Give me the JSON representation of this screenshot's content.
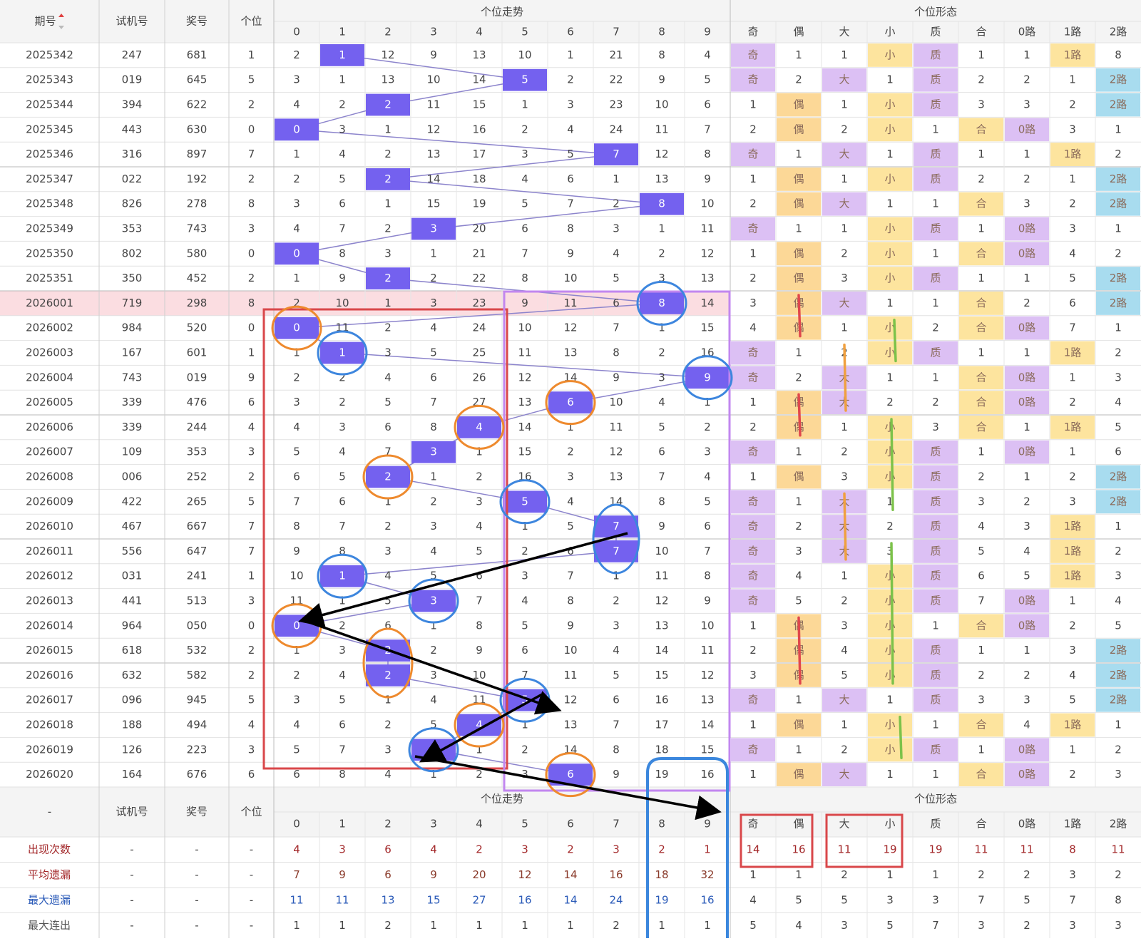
{
  "header": {
    "columns": [
      "期号",
      "试机号",
      "奖号",
      "个位"
    ],
    "group_trend": "个位走势",
    "group_form": "个位形态",
    "digits": [
      "0",
      "1",
      "2",
      "3",
      "4",
      "5",
      "6",
      "7",
      "8",
      "9"
    ],
    "forms": [
      "奇",
      "偶",
      "大",
      "小",
      "质",
      "合",
      "0路",
      "1路",
      "2路"
    ]
  },
  "rows": [
    {
      "issue": "2025342",
      "test": "247",
      "prize": "681",
      "unit": 1,
      "trend": [
        2,
        1,
        12,
        9,
        13,
        10,
        1,
        21,
        8,
        4
      ],
      "form": [
        "奇",
        1,
        1,
        "小",
        "质",
        1,
        1,
        "1路",
        8
      ]
    },
    {
      "issue": "2025343",
      "test": "019",
      "prize": "645",
      "unit": 5,
      "trend": [
        3,
        1,
        13,
        10,
        14,
        5,
        2,
        22,
        9,
        5
      ],
      "form": [
        "奇",
        2,
        "大",
        1,
        "质",
        2,
        2,
        1,
        "2路"
      ]
    },
    {
      "issue": "2025344",
      "test": "394",
      "prize": "622",
      "unit": 2,
      "trend": [
        4,
        2,
        2,
        11,
        15,
        1,
        3,
        23,
        10,
        6
      ],
      "form": [
        1,
        "偶",
        1,
        "小",
        "质",
        3,
        3,
        2,
        "2路"
      ]
    },
    {
      "issue": "2025345",
      "test": "443",
      "prize": "630",
      "unit": 0,
      "trend": [
        0,
        3,
        1,
        12,
        16,
        2,
        4,
        24,
        11,
        7
      ],
      "form": [
        2,
        "偶",
        2,
        "小",
        1,
        "合",
        "0路",
        3,
        1
      ]
    },
    {
      "issue": "2025346",
      "test": "316",
      "prize": "897",
      "unit": 7,
      "trend": [
        1,
        4,
        2,
        13,
        17,
        3,
        5,
        7,
        12,
        8
      ],
      "form": [
        "奇",
        1,
        "大",
        1,
        "质",
        1,
        1,
        "1路",
        2
      ]
    },
    {
      "issue": "2025347",
      "test": "022",
      "prize": "192",
      "unit": 2,
      "trend": [
        2,
        5,
        2,
        14,
        18,
        4,
        6,
        1,
        13,
        9
      ],
      "form": [
        1,
        "偶",
        1,
        "小",
        "质",
        2,
        2,
        1,
        "2路"
      ]
    },
    {
      "issue": "2025348",
      "test": "826",
      "prize": "278",
      "unit": 8,
      "trend": [
        3,
        6,
        1,
        15,
        19,
        5,
        7,
        2,
        8,
        10
      ],
      "form": [
        2,
        "偶",
        "大",
        1,
        1,
        "合",
        3,
        2,
        "2路"
      ]
    },
    {
      "issue": "2025349",
      "test": "353",
      "prize": "743",
      "unit": 3,
      "trend": [
        4,
        7,
        2,
        3,
        20,
        6,
        8,
        3,
        1,
        11
      ],
      "form": [
        "奇",
        1,
        1,
        "小",
        "质",
        1,
        "0路",
        3,
        1
      ]
    },
    {
      "issue": "2025350",
      "test": "802",
      "prize": "580",
      "unit": 0,
      "trend": [
        0,
        8,
        3,
        1,
        21,
        7,
        9,
        4,
        2,
        12
      ],
      "form": [
        1,
        "偶",
        2,
        "小",
        1,
        "合",
        "0路",
        4,
        2
      ]
    },
    {
      "issue": "2025351",
      "test": "350",
      "prize": "452",
      "unit": 2,
      "trend": [
        1,
        9,
        2,
        2,
        22,
        8,
        10,
        5,
        3,
        13
      ],
      "form": [
        2,
        "偶",
        3,
        "小",
        "质",
        1,
        1,
        5,
        "2路"
      ]
    },
    {
      "issue": "2026001",
      "test": "719",
      "prize": "298",
      "unit": 8,
      "trend": [
        2,
        10,
        1,
        3,
        23,
        9,
        11,
        6,
        8,
        14
      ],
      "form": [
        3,
        "偶",
        "大",
        1,
        1,
        "合",
        2,
        6,
        "2路"
      ]
    },
    {
      "issue": "2026002",
      "test": "984",
      "prize": "520",
      "unit": 0,
      "trend": [
        0,
        11,
        2,
        4,
        24,
        10,
        12,
        7,
        1,
        15
      ],
      "form": [
        4,
        "偶",
        1,
        "小",
        2,
        "合",
        "0路",
        7,
        1
      ]
    },
    {
      "issue": "2026003",
      "test": "167",
      "prize": "601",
      "unit": 1,
      "trend": [
        1,
        1,
        3,
        5,
        25,
        11,
        13,
        8,
        2,
        16
      ],
      "form": [
        "奇",
        1,
        2,
        "小",
        "质",
        1,
        1,
        "1路",
        2
      ]
    },
    {
      "issue": "2026004",
      "test": "743",
      "prize": "019",
      "unit": 9,
      "trend": [
        2,
        2,
        4,
        6,
        26,
        12,
        14,
        9,
        3,
        9
      ],
      "form": [
        "奇",
        2,
        "大",
        1,
        1,
        "合",
        "0路",
        1,
        3
      ]
    },
    {
      "issue": "2026005",
      "test": "339",
      "prize": "476",
      "unit": 6,
      "trend": [
        3,
        2,
        5,
        7,
        27,
        13,
        6,
        10,
        4,
        1
      ],
      "form": [
        1,
        "偶",
        "大",
        2,
        2,
        "合",
        "0路",
        2,
        4
      ]
    },
    {
      "issue": "2026006",
      "test": "339",
      "prize": "244",
      "unit": 4,
      "trend": [
        4,
        3,
        6,
        8,
        4,
        14,
        1,
        11,
        5,
        2
      ],
      "form": [
        2,
        "偶",
        1,
        "小",
        3,
        "合",
        1,
        "1路",
        5
      ]
    },
    {
      "issue": "2026007",
      "test": "109",
      "prize": "353",
      "unit": 3,
      "trend": [
        5,
        4,
        7,
        3,
        1,
        15,
        2,
        12,
        6,
        3
      ],
      "form": [
        "奇",
        1,
        2,
        "小",
        "质",
        1,
        "0路",
        1,
        6
      ]
    },
    {
      "issue": "2026008",
      "test": "006",
      "prize": "252",
      "unit": 2,
      "trend": [
        6,
        5,
        2,
        1,
        2,
        16,
        3,
        13,
        7,
        4
      ],
      "form": [
        1,
        "偶",
        3,
        "小",
        "质",
        2,
        1,
        2,
        "2路"
      ]
    },
    {
      "issue": "2026009",
      "test": "422",
      "prize": "265",
      "unit": 5,
      "trend": [
        7,
        6,
        1,
        2,
        3,
        5,
        4,
        14,
        8,
        5
      ],
      "form": [
        "奇",
        1,
        "大",
        1,
        "质",
        3,
        2,
        3,
        "2路"
      ]
    },
    {
      "issue": "2026010",
      "test": "467",
      "prize": "667",
      "unit": 7,
      "trend": [
        8,
        7,
        2,
        3,
        4,
        1,
        5,
        7,
        9,
        6
      ],
      "form": [
        "奇",
        2,
        "大",
        2,
        "质",
        4,
        3,
        "1路",
        1
      ]
    },
    {
      "issue": "2026011",
      "test": "556",
      "prize": "647",
      "unit": 7,
      "trend": [
        9,
        8,
        3,
        4,
        5,
        2,
        6,
        7,
        10,
        7
      ],
      "form": [
        "奇",
        3,
        "大",
        3,
        "质",
        5,
        4,
        "1路",
        2
      ]
    },
    {
      "issue": "2026012",
      "test": "031",
      "prize": "241",
      "unit": 1,
      "trend": [
        10,
        1,
        4,
        5,
        6,
        3,
        7,
        1,
        11,
        8
      ],
      "form": [
        "奇",
        4,
        1,
        "小",
        "质",
        6,
        5,
        "1路",
        3
      ]
    },
    {
      "issue": "2026013",
      "test": "441",
      "prize": "513",
      "unit": 3,
      "trend": [
        11,
        1,
        5,
        3,
        7,
        4,
        8,
        2,
        12,
        9
      ],
      "form": [
        "奇",
        5,
        2,
        "小",
        "质",
        7,
        "0路",
        1,
        4
      ]
    },
    {
      "issue": "2026014",
      "test": "964",
      "prize": "050",
      "unit": 0,
      "trend": [
        0,
        2,
        6,
        1,
        8,
        5,
        9,
        3,
        13,
        10
      ],
      "form": [
        1,
        "偶",
        3,
        "小",
        1,
        "合",
        "0路",
        2,
        5
      ]
    },
    {
      "issue": "2026015",
      "test": "618",
      "prize": "532",
      "unit": 2,
      "trend": [
        1,
        3,
        2,
        2,
        9,
        6,
        10,
        4,
        14,
        11
      ],
      "form": [
        2,
        "偶",
        4,
        "小",
        "质",
        1,
        1,
        3,
        "2路"
      ]
    },
    {
      "issue": "2026016",
      "test": "632",
      "prize": "582",
      "unit": 2,
      "trend": [
        2,
        4,
        2,
        3,
        10,
        7,
        11,
        5,
        15,
        12
      ],
      "form": [
        3,
        "偶",
        5,
        "小",
        "质",
        2,
        2,
        4,
        "2路"
      ]
    },
    {
      "issue": "2026017",
      "test": "096",
      "prize": "945",
      "unit": 5,
      "trend": [
        3,
        5,
        1,
        4,
        11,
        5,
        12,
        6,
        16,
        13
      ],
      "form": [
        "奇",
        1,
        "大",
        1,
        "质",
        3,
        3,
        5,
        "2路"
      ]
    },
    {
      "issue": "2026018",
      "test": "188",
      "prize": "494",
      "unit": 4,
      "trend": [
        4,
        6,
        2,
        5,
        4,
        1,
        13,
        7,
        17,
        14
      ],
      "form": [
        1,
        "偶",
        1,
        "小",
        1,
        "合",
        4,
        "1路",
        1
      ]
    },
    {
      "issue": "2026019",
      "test": "126",
      "prize": "223",
      "unit": 3,
      "trend": [
        5,
        7,
        3,
        3,
        1,
        2,
        14,
        8,
        18,
        15
      ],
      "form": [
        "奇",
        1,
        2,
        "小",
        "质",
        1,
        "0路",
        1,
        2
      ]
    },
    {
      "issue": "2026020",
      "test": "164",
      "prize": "676",
      "unit": 6,
      "trend": [
        6,
        8,
        4,
        1,
        2,
        3,
        6,
        9,
        19,
        16
      ],
      "form": [
        1,
        "偶",
        "大",
        1,
        1,
        "合",
        "0路",
        2,
        3
      ]
    }
  ],
  "footer": {
    "header": {
      "columns": [
        "-",
        "试机号",
        "奖号",
        "个位"
      ],
      "group_trend": "个位走势",
      "group_form": "个位形态",
      "digits": [
        "0",
        "1",
        "2",
        "3",
        "4",
        "5",
        "6",
        "7",
        "8",
        "9"
      ],
      "forms": [
        "奇",
        "偶",
        "大",
        "小",
        "质",
        "合",
        "0路",
        "1路",
        "2路"
      ]
    },
    "stats": [
      {
        "label": "出现次数",
        "cols": [
          "-",
          "-",
          "-"
        ],
        "trend": [
          4,
          3,
          6,
          4,
          2,
          3,
          2,
          3,
          2,
          1
        ],
        "form": [
          14,
          16,
          11,
          19,
          19,
          11,
          11,
          8,
          11
        ]
      },
      {
        "label": "平均遗漏",
        "cols": [
          "-",
          "-",
          "-"
        ],
        "trend": [
          7,
          9,
          6,
          9,
          20,
          12,
          14,
          16,
          18,
          32
        ],
        "form": [
          1,
          1,
          2,
          1,
          1,
          2,
          2,
          3,
          2
        ]
      },
      {
        "label": "最大遗漏",
        "cols": [
          "-",
          "-",
          "-"
        ],
        "trend": [
          11,
          11,
          13,
          15,
          27,
          16,
          14,
          24,
          19,
          16
        ],
        "form": [
          4,
          5,
          5,
          3,
          3,
          7,
          5,
          7,
          8
        ]
      },
      {
        "label": "最大连出",
        "cols": [
          "-",
          "-",
          "-"
        ],
        "trend": [
          1,
          1,
          2,
          1,
          1,
          1,
          1,
          2,
          1,
          1
        ],
        "form": [
          5,
          4,
          3,
          5,
          7,
          3,
          2,
          3,
          3
        ]
      }
    ]
  }
}
